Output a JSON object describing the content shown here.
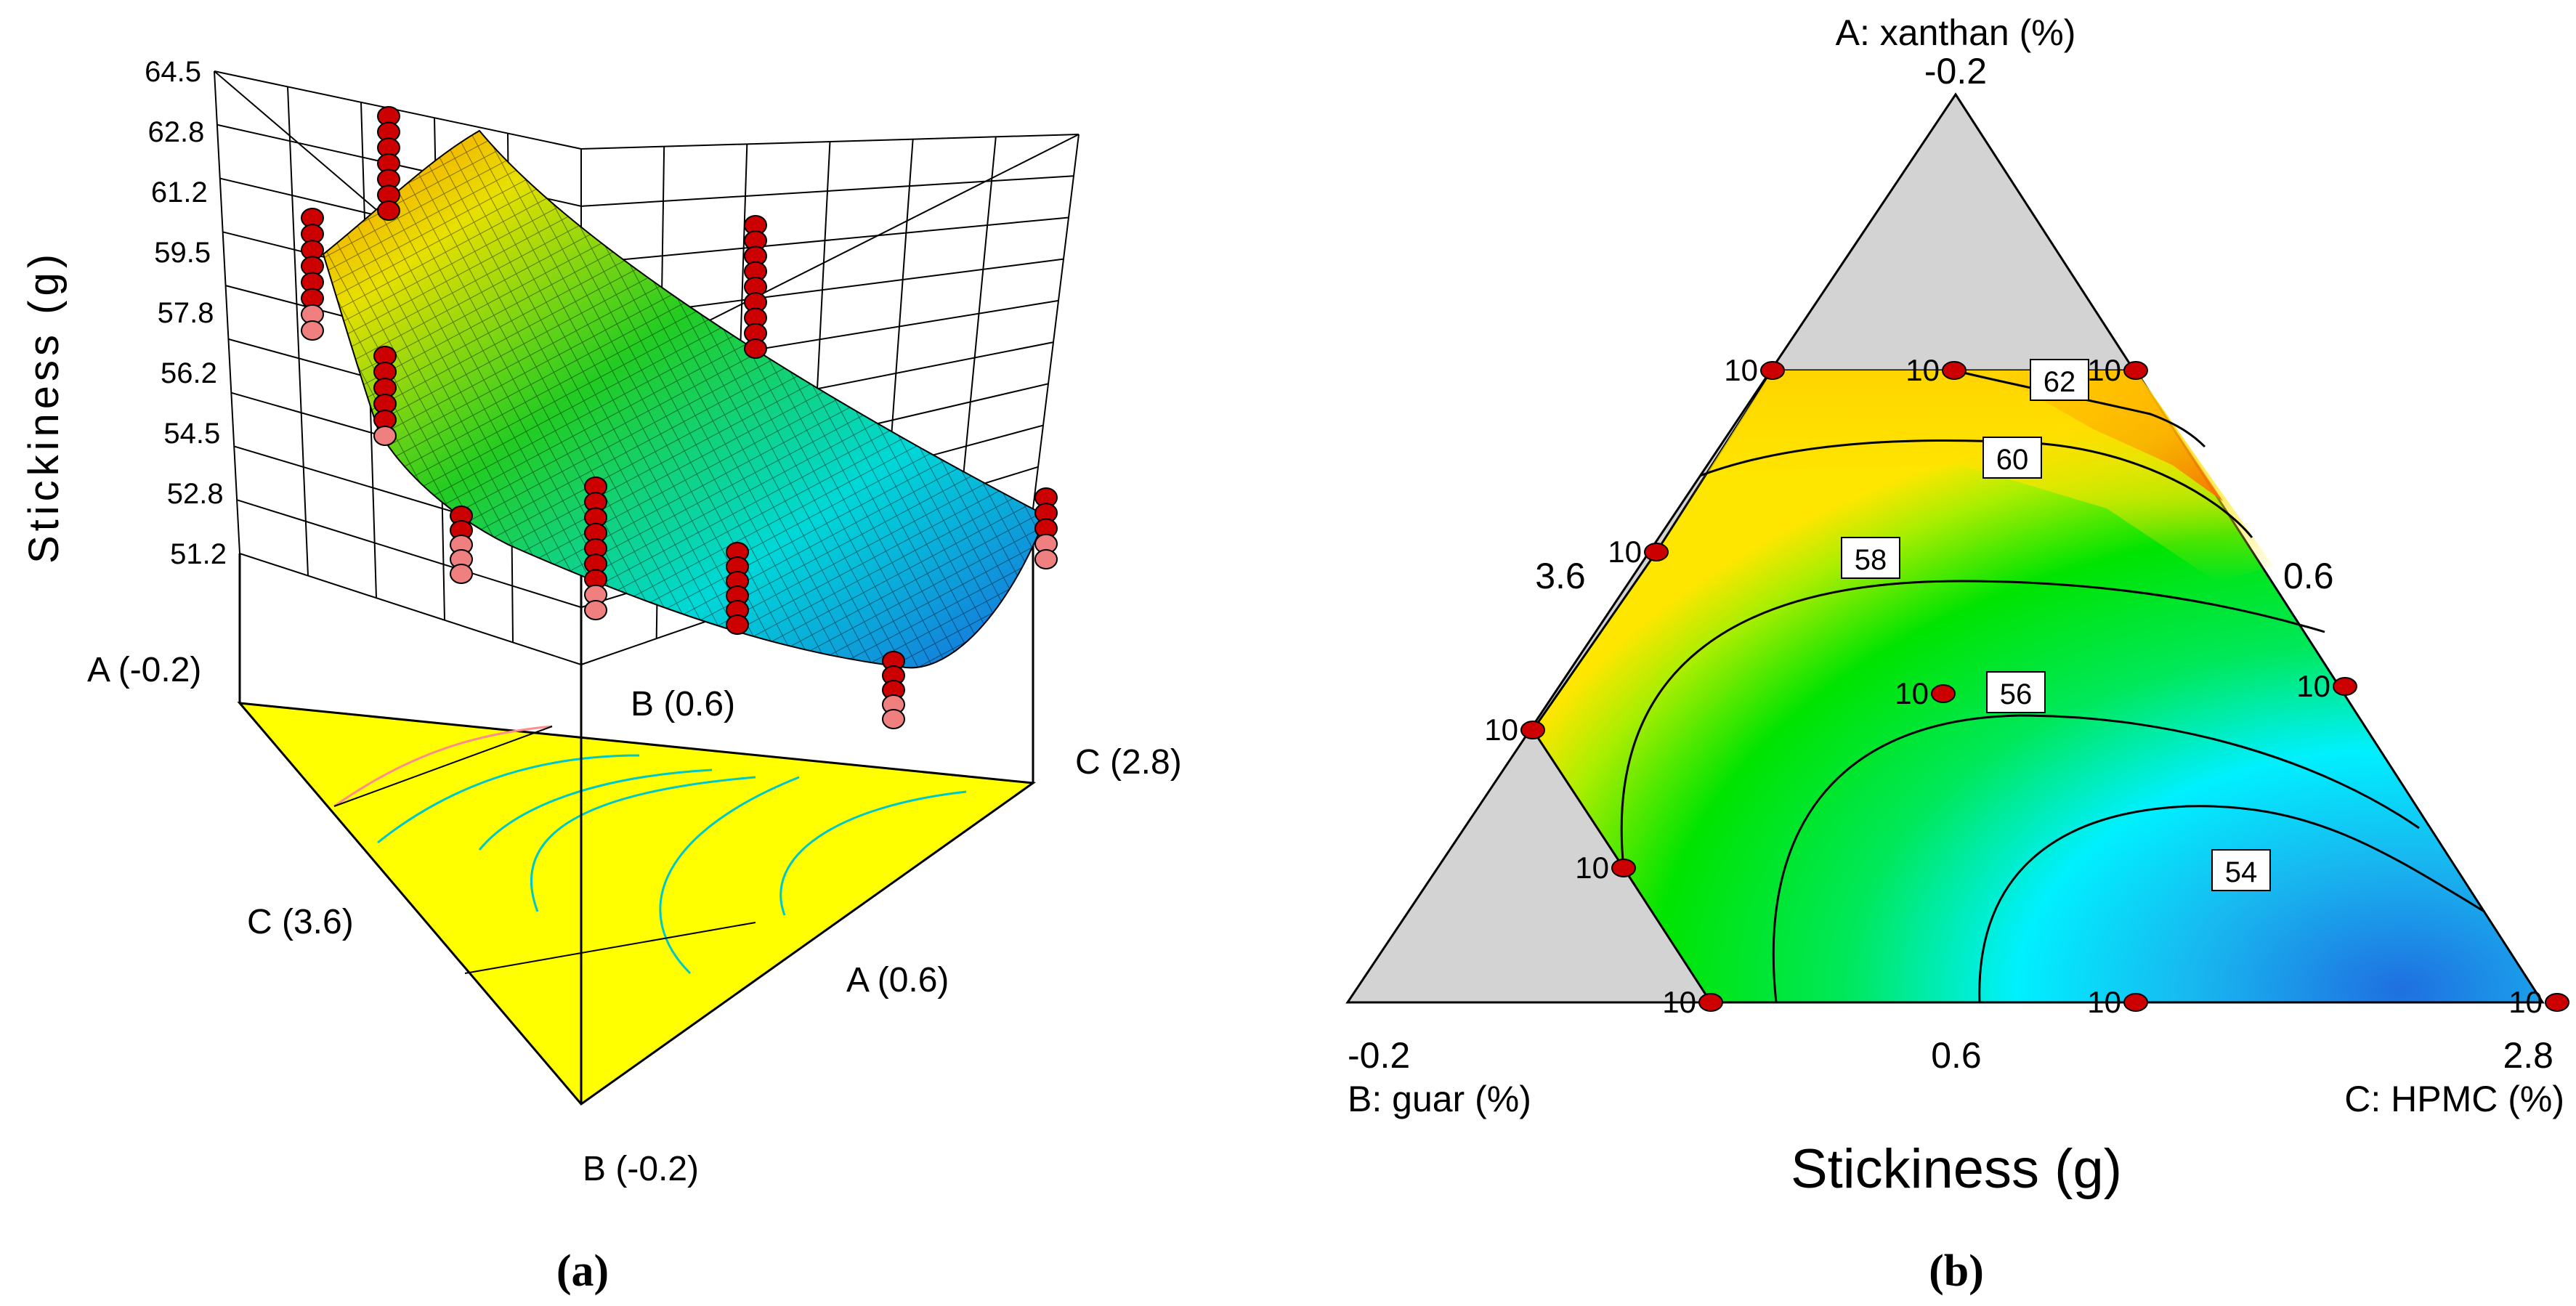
{
  "chart_data": [
    {
      "type": "surface",
      "panel_label": "(a)",
      "zlabel": "Stickiness (g)",
      "z_ticks": [
        "64.5",
        "62.8",
        "61.2",
        "59.5",
        "57.8",
        "56.2",
        "54.5",
        "52.8",
        "51.2"
      ],
      "vertex_labels": {
        "a_top": "A (-0.2)",
        "b_mid": "B (0.6)",
        "c_right": "C (2.8)",
        "c_left": "C (3.6)",
        "a_bottom": "A (0.6)",
        "b_bottom": "B (-0.2)"
      },
      "surface_range": [
        51.2,
        64.5
      ],
      "base_color": "#ffff00",
      "colormap": [
        "#1f6fe0",
        "#00e6ff",
        "#00e000",
        "#ffff00",
        "#ff8000"
      ],
      "design_point_color": "#cc0000",
      "below_point_color": "#f08080"
    },
    {
      "type": "ternary-contour",
      "panel_label": "(b)",
      "title": "Stickiness (g)",
      "axes": {
        "a": {
          "label": "A: xanthan (%)",
          "top": "-0.2",
          "side": "0.6"
        },
        "b": {
          "label": "B: guar (%)",
          "corner": "-0.2",
          "side": "3.6"
        },
        "c": {
          "label": "C: HPMC (%)",
          "corner": "2.8",
          "bottom": "0.6"
        }
      },
      "contour_levels": [
        54,
        56,
        58,
        60,
        62
      ],
      "contour_labels": [
        "54",
        "56",
        "58",
        "60",
        "62"
      ],
      "design_point_label": "10",
      "design_points_count": 10,
      "colors": {
        "low": "#1f6fe0",
        "mid": "#00e600",
        "high": "#ff8000",
        "excluded": "#d3d3d3",
        "point": "#cc0000"
      }
    }
  ]
}
